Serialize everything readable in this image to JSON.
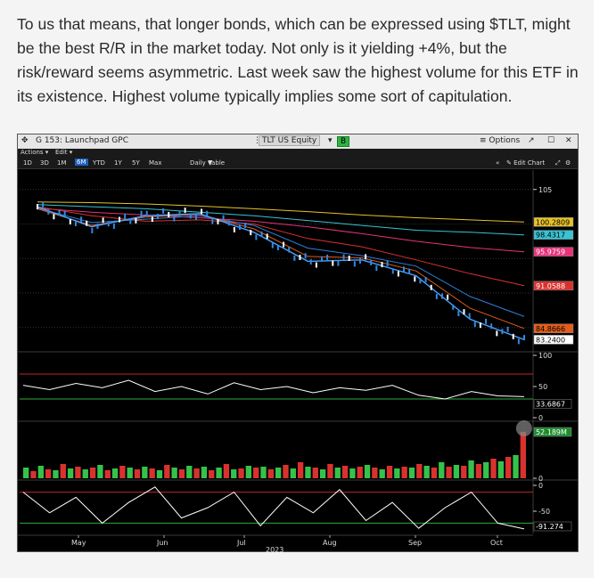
{
  "article": {
    "paragraph": "To us that means, that longer bonds, which can be expressed using $TLT, might be the best R/R in the market today. Not only is it yielding +4%, but the risk/reward seems asymmetric. Last week saw the highest volume for this ETF in its existence. Highest volume typically implies some sort of capitulation."
  },
  "window": {
    "title": "G 153: Launchpad GPC",
    "security": "TLT US Equity",
    "b_button": "B",
    "options": "≡ Options",
    "maximize_icon": "expand-icon",
    "restore_icon": "square-icon",
    "close_icon": "close-icon"
  },
  "menu": {
    "actions": "Actions ▾",
    "edit": "Edit ▾"
  },
  "toolbar": {
    "ranges": [
      "1D",
      "3D",
      "1M",
      "6M",
      "YTD",
      "1Y",
      "5Y",
      "Max"
    ],
    "active_range": "6M",
    "period": "Daily ▼",
    "table": "Table",
    "collapse": "«",
    "edit_chart": "✎ Edit Chart",
    "zoom_icon": "zoom-icon",
    "settings_icon": "gear-icon"
  },
  "chart_data": [
    {
      "type": "line",
      "panel": "price",
      "x_labels": [
        "May",
        "Jun",
        "Jul",
        "Aug",
        "Sep",
        "Oct"
      ],
      "year_label": "2023",
      "ticks": [
        "105"
      ],
      "value_tags": [
        {
          "value": "100.2809",
          "color": "#e6c229",
          "text": "#000000"
        },
        {
          "value": "98.4317",
          "color": "#37c4d4",
          "text": "#000000"
        },
        {
          "value": "95.9759",
          "color": "#e6337a",
          "text": "#ffffff"
        },
        {
          "value": "91.0588",
          "color": "#d9322e",
          "text": "#ffffff"
        },
        {
          "value": "84.8666",
          "color": "#e25d1b",
          "text": "#000000"
        },
        {
          "value": "83.2400",
          "color": "#ffffff",
          "text": "#000000"
        }
      ],
      "series": [
        {
          "color": "#e6c229",
          "values": [
            103.2,
            103.1,
            102.9,
            102.6,
            102.2,
            101.8,
            101.3,
            100.9,
            100.6,
            100.28
          ]
        },
        {
          "color": "#37c4d4",
          "values": [
            102.8,
            102.5,
            102.2,
            101.7,
            101.2,
            100.5,
            99.8,
            99.1,
            98.8,
            98.43
          ]
        },
        {
          "color": "#e6337a",
          "values": [
            102.3,
            101.7,
            101.3,
            100.9,
            100.4,
            99.6,
            98.6,
            97.5,
            96.6,
            95.98
          ]
        },
        {
          "color": "#d9322e",
          "values": [
            102.5,
            101.2,
            100.4,
            100.6,
            100.0,
            97.9,
            96.7,
            94.8,
            92.8,
            91.06
          ]
        },
        {
          "color": "#2e7fd9",
          "values": [
            102.3,
            100.2,
            100.7,
            101.2,
            99.8,
            96.5,
            95.4,
            93.9,
            89.5,
            86.6
          ]
        },
        {
          "color": "#e25d1b",
          "values": [
            102.2,
            99.8,
            101.0,
            101.4,
            99.3,
            95.3,
            95.1,
            93.2,
            87.8,
            84.87
          ]
        },
        {
          "color": "#4aa3ff",
          "name": "",
          "values": [
            102.5,
            99.6,
            101.2,
            101.5,
            98.8,
            94.6,
            94.8,
            92.5,
            86.2,
            83.24
          ]
        }
      ]
    },
    {
      "type": "line",
      "panel": "rsi",
      "ticks": [
        "100",
        "50",
        "0"
      ],
      "value_tags": [
        {
          "value": "33.6867",
          "color": "#000000",
          "text": "#ffffff"
        }
      ],
      "series": [
        {
          "color": "#ffffff",
          "values": [
            52,
            45,
            55,
            48,
            60,
            42,
            50,
            38,
            56,
            45,
            50,
            40,
            48,
            44,
            52,
            36,
            30,
            42,
            35,
            33.69
          ]
        }
      ]
    },
    {
      "type": "bar",
      "panel": "volume",
      "ticks": [
        "0"
      ],
      "value_tags": [
        {
          "value": "52.189M",
          "color": "#1f8a2f",
          "text": "#ffffff"
        }
      ],
      "values": [
        12,
        8,
        14,
        10,
        9,
        16,
        11,
        13,
        10,
        12,
        15,
        9,
        11,
        14,
        12,
        10,
        13,
        11,
        9,
        15,
        12,
        10,
        14,
        11,
        13,
        9,
        12,
        16,
        10,
        11,
        14,
        12,
        13,
        10,
        12,
        15,
        11,
        18,
        13,
        12,
        10,
        16,
        12,
        14,
        11,
        13,
        15,
        12,
        10,
        14,
        11,
        13,
        12,
        16,
        14,
        12,
        18,
        13,
        15,
        14,
        20,
        16,
        18,
        22,
        19,
        24,
        26,
        52.189
      ]
    },
    {
      "type": "line",
      "panel": "oscillator",
      "ticks": [
        "0",
        "-50"
      ],
      "value_tags": [
        {
          "value": "-91.274",
          "color": "#000000",
          "text": "#ffffff"
        }
      ],
      "series": [
        {
          "color": "#ffffff",
          "values": [
            -20,
            -60,
            -30,
            -80,
            -40,
            -10,
            -70,
            -50,
            -20,
            -85,
            -30,
            -60,
            -15,
            -75,
            -40,
            -90,
            -50,
            -20,
            -80,
            -91.274
          ]
        }
      ]
    }
  ]
}
